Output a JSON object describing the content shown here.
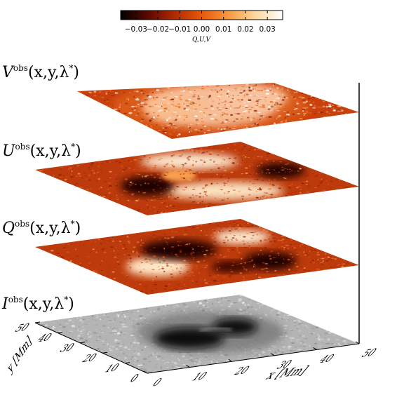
{
  "colorbar": {
    "tick_labels": [
      "−0.03",
      "−0.02",
      "−0.01",
      "0.00",
      "0.01",
      "0.02",
      "0.03"
    ],
    "tick_values": [
      -0.03,
      -0.02,
      -0.01,
      0.0,
      0.01,
      0.02,
      0.03
    ],
    "range": [
      -0.037,
      0.037
    ],
    "label": "Q,U,V",
    "gradient": [
      "#000000",
      "#5a0800",
      "#b02a00",
      "#e8580a",
      "#f79a40",
      "#fdd8a0",
      "#ffffff"
    ]
  },
  "layers": [
    {
      "key": "V",
      "label_main": "V",
      "label_sup": "obs",
      "label_args": "(x,y,λ",
      "label_star": "*",
      "label_close": ")",
      "base_color": "#c8400c",
      "pattern": "bright-center"
    },
    {
      "key": "U",
      "label_main": "U",
      "label_sup": "obs",
      "label_args": "(x,y,λ",
      "label_star": "*",
      "label_close": ")",
      "base_color": "#bd3a0c",
      "pattern": "lobes"
    },
    {
      "key": "Q",
      "label_main": "Q",
      "label_sup": "obs",
      "label_args": "(x,y,λ",
      "label_star": "*",
      "label_close": ")",
      "base_color": "#bd3a0c",
      "pattern": "lobes"
    },
    {
      "key": "I",
      "label_main": "I",
      "label_sup": "obs",
      "label_args": "(x,y,λ",
      "label_star": "*",
      "label_close": ")",
      "base_color": "#b4b4b4",
      "pattern": "sunspot"
    }
  ],
  "axes": {
    "y_axis": {
      "label": "y [Mm]",
      "ticks": [
        "0",
        "10",
        "20",
        "30",
        "40",
        "50"
      ],
      "range": [
        0,
        50
      ]
    },
    "x_axis": {
      "label": "x [Mm]",
      "ticks": [
        "0",
        "10",
        "20",
        "30",
        "40",
        "50"
      ],
      "range": [
        0,
        50
      ]
    }
  }
}
